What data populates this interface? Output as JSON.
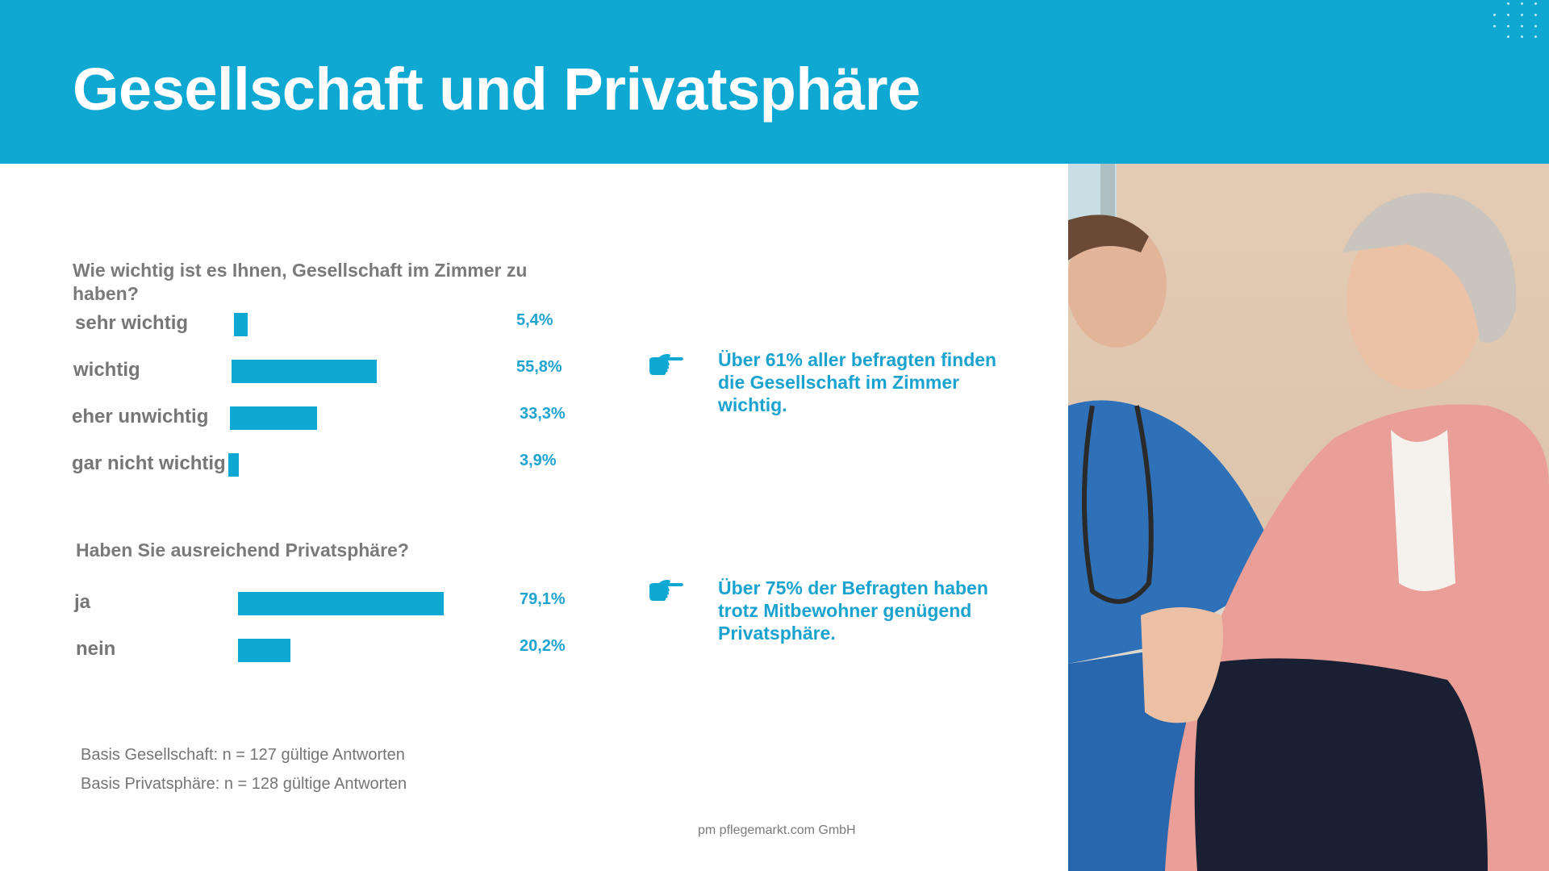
{
  "header": {
    "title": "Gesellschaft und Privatsphäre",
    "accent_color": "#0fa8d3"
  },
  "chart_data": [
    {
      "type": "bar",
      "orientation": "horizontal",
      "title": "Wie wichtig ist es Ihnen, Gesellschaft im Zimmer zu haben?",
      "categories": [
        "sehr wichtig",
        "wichtig",
        "eher unwichtig",
        "gar nicht wichtig"
      ],
      "values": [
        5.4,
        55.8,
        33.3,
        3.9
      ],
      "value_labels": [
        "5,4%",
        "55,8%",
        "33,3%",
        "3,9%"
      ],
      "unit": "%",
      "xlim": [
        0,
        100
      ],
      "grid": false,
      "bar_color": "#0fa8d3"
    },
    {
      "type": "bar",
      "orientation": "horizontal",
      "title": "Haben Sie ausreichend Privatsphäre?",
      "categories": [
        "ja",
        "nein"
      ],
      "values": [
        79.1,
        20.2
      ],
      "value_labels": [
        "79,1%",
        "20,2%"
      ],
      "unit": "%",
      "xlim": [
        0,
        100
      ],
      "grid": false,
      "bar_color": "#0fa8d3"
    }
  ],
  "insights": [
    {
      "icon": "pointing-hand-icon",
      "text": "Über 61% aller befragten finden die Gesellschaft im Zimmer wichtig."
    },
    {
      "icon": "pointing-hand-icon",
      "text": "Über 75% der Befragten haben trotz Mitbewohner genügend Privatsphäre."
    }
  ],
  "basis": [
    "Basis Gesellschaft: n = 127 gültige Antworten",
    "Basis Privatsphäre: n = 128 gültige Antworten"
  ],
  "footer": "pm pflegemarkt.com GmbH",
  "photo": {
    "description": "Pflegekraft in blauer Kleidung mit Stethoskop und lachende Seniorin in rosa Strickjacke"
  }
}
